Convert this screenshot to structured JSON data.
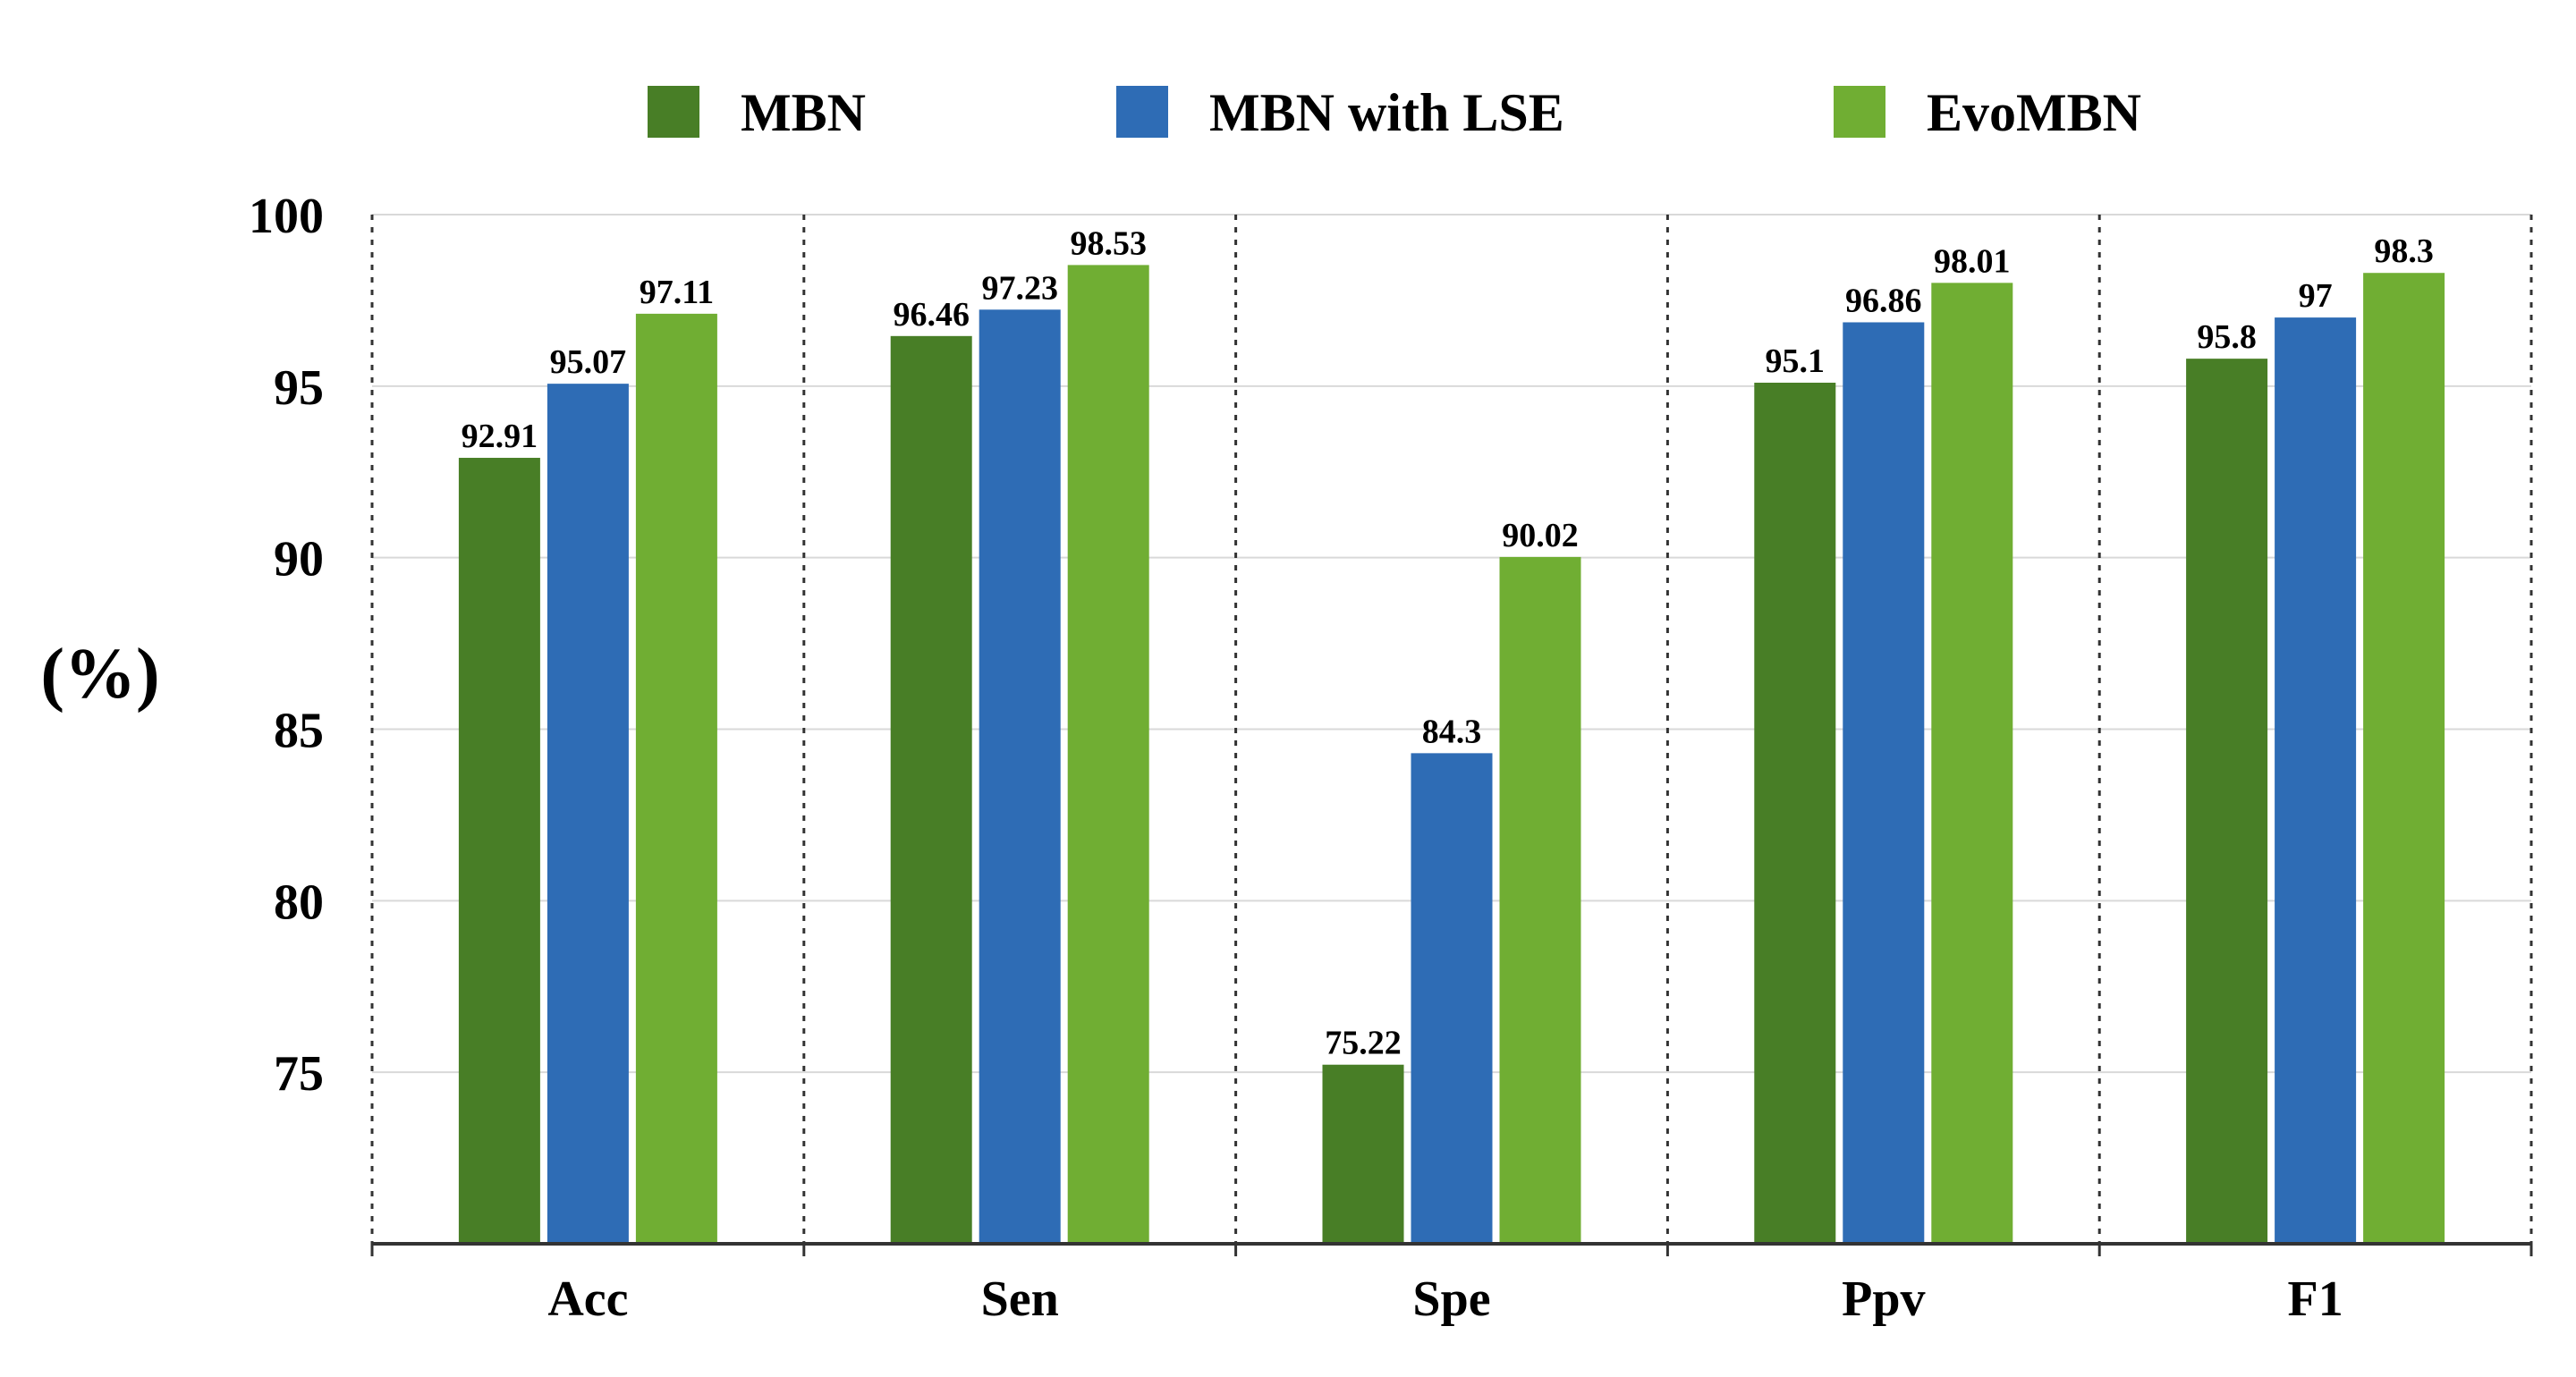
{
  "chart_data": {
    "type": "bar",
    "title": "",
    "xlabel": "",
    "ylabel": "(%)",
    "categories": [
      "Acc",
      "Sen",
      "Spe",
      "Ppv",
      "F1"
    ],
    "series": [
      {
        "name": "MBN",
        "color": "#487e26",
        "values": [
          92.91,
          96.46,
          75.22,
          95.1,
          95.8
        ]
      },
      {
        "name": "MBN with LSE",
        "color": "#2e6cb5",
        "values": [
          95.07,
          97.23,
          84.3,
          96.86,
          97
        ]
      },
      {
        "name": "EvoMBN",
        "color": "#70ae33",
        "values": [
          97.11,
          98.53,
          90.02,
          98.01,
          98.3
        ]
      }
    ],
    "ylim": [
      70,
      100
    ],
    "yticks": [
      75,
      80,
      85,
      90,
      95,
      100
    ],
    "grid": true,
    "legend_position": "top"
  }
}
